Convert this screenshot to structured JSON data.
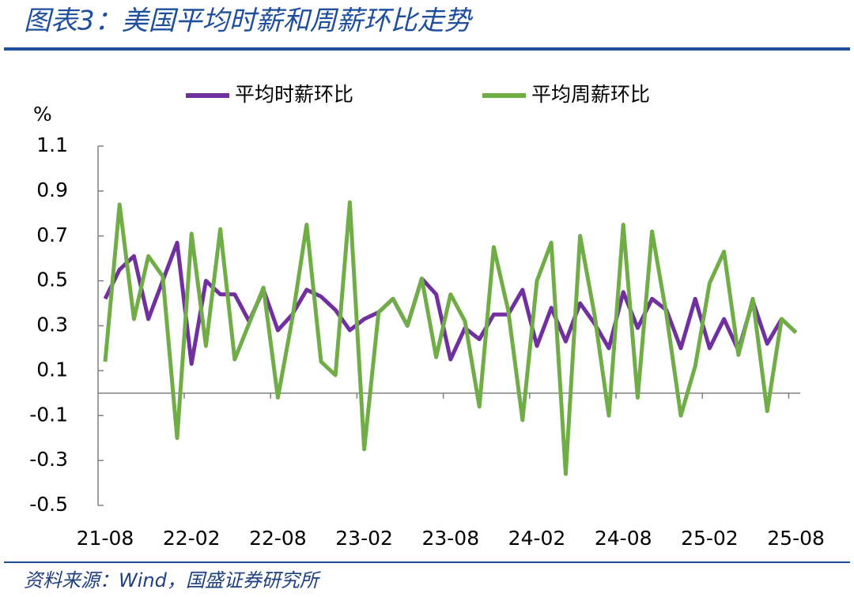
{
  "chart_data": {
    "type": "line",
    "title": "图表3：美国平均时薪和周薪环比走势",
    "source": "资料来源：Wind，国盛证券研究所",
    "y_label": "%",
    "categories": [
      "21-08",
      null,
      null,
      null,
      null,
      null,
      "22-02",
      null,
      null,
      null,
      null,
      null,
      "22-08",
      null,
      null,
      null,
      null,
      null,
      "23-02",
      null,
      null,
      null,
      null,
      null,
      "23-08",
      null,
      null,
      null,
      null,
      null,
      "24-02",
      null,
      null,
      null,
      null,
      null,
      "24-08",
      null,
      null,
      null,
      null,
      null,
      "25-02",
      null,
      null,
      null,
      null,
      null,
      "25-08"
    ],
    "series": [
      {
        "name": "平均时薪环比",
        "color": "#7030a0",
        "values": [
          0.42,
          0.55,
          0.61,
          0.33,
          0.5,
          0.67,
          0.13,
          0.5,
          0.44,
          0.44,
          0.32,
          0.46,
          0.28,
          0.35,
          0.46,
          0.43,
          0.37,
          0.28,
          0.33,
          0.36,
          0.42,
          0.3,
          0.51,
          0.44,
          0.15,
          0.29,
          0.24,
          0.35,
          0.35,
          0.46,
          0.21,
          0.38,
          0.23,
          0.4,
          0.31,
          0.2,
          0.45,
          0.29,
          0.42,
          0.37,
          0.2,
          0.42,
          0.2,
          0.33,
          0.19,
          0.41,
          0.22,
          0.33,
          0.27
        ]
      },
      {
        "name": "平均周薪环比",
        "color": "#70ad47",
        "values": [
          0.14,
          0.84,
          0.33,
          0.61,
          0.52,
          -0.2,
          0.71,
          0.21,
          0.73,
          0.15,
          0.31,
          0.47,
          -0.02,
          0.33,
          0.75,
          0.14,
          0.08,
          0.85,
          -0.25,
          0.36,
          0.42,
          0.3,
          0.51,
          0.16,
          0.44,
          0.32,
          -0.06,
          0.65,
          0.37,
          -0.12,
          0.5,
          0.67,
          -0.36,
          0.7,
          0.35,
          -0.1,
          0.75,
          -0.02,
          0.72,
          0.35,
          -0.1,
          0.12,
          0.49,
          0.63,
          0.17,
          0.42,
          -0.08,
          0.33,
          0.27
        ]
      }
    ],
    "ylim": [
      -0.5,
      1.1
    ],
    "yticks": [
      1.1,
      0.9,
      0.7,
      0.5,
      0.3,
      0.1,
      -0.1,
      -0.3,
      -0.5
    ]
  }
}
